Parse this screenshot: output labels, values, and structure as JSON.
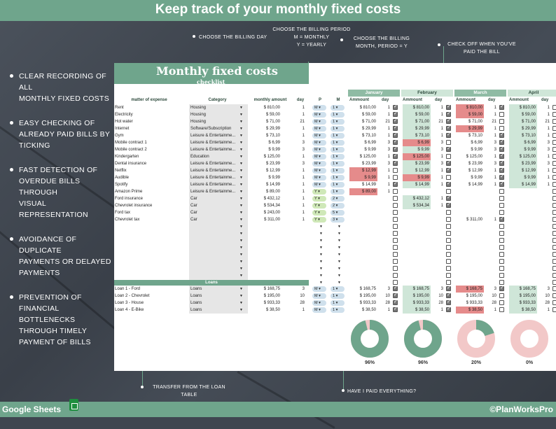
{
  "page_title": "Keep track of your monthly fixed costs",
  "bullets": [
    "CLEAR RECORDING OF ALL\nMONTHLY FIXED COSTS",
    "EASY CHECKING OF\nALREADY PAID BILLS BY\nTICKING",
    "FAST DETECTION OF\nOVERDUE BILLS THROUGH\nVISUAL REPRESENTATION",
    "AVOIDANCE OF DUPLICATE\nPAYMENTS OR DELAYED\nPAYMENTS",
    "PREVENTION OF\nFINANCIAL BOTTLENECKS\nTHROUGH TIMELY\nPAYMENT OF BILLS"
  ],
  "callouts": {
    "billing_day": "CHOOSE THE BILLING DAY",
    "billing_period": "CHOOSE THE BILLING PERIOD\nM = MONTHLY\nY = YEARLY",
    "billing_month": "CHOOSE THE BILLING\nMONTH, PERIOD = Y",
    "check_off": "CHECK OFF WHEN YOU'VE\nPAID THE BILL",
    "transfer": "TRANSFER FROM THE LOAN\nTABLE",
    "paid_everything": "HAVE I PAID EVERYTHING?"
  },
  "footer": {
    "left": "Google Sheets",
    "right": "©PlanWorksPro"
  },
  "sheet": {
    "title": "Monthly fixed costs",
    "subtitle": "checklist",
    "headers": {
      "expense": "matter of expense",
      "category": "Category",
      "amount": "monthly amount",
      "day": "day",
      "p": "P",
      "m": "M"
    },
    "month_sub": {
      "amount": "Ammount",
      "day": "day"
    },
    "months": [
      "January",
      "February",
      "March",
      "April"
    ],
    "loans_label": "Loans",
    "rows": [
      {
        "name": "Rent",
        "cat": "Housing",
        "amt": "$ 810,00",
        "day": "1",
        "p": "M",
        "m": "1",
        "v": [
          "$ 810,00",
          "$ 810,00",
          "$ 810,00",
          "$ 810,00"
        ],
        "d": [
          "1",
          "1",
          "1",
          "1"
        ],
        "c": [
          1,
          1,
          1,
          0
        ],
        "red": [
          0,
          0,
          1,
          0
        ]
      },
      {
        "name": "Electricity",
        "cat": "Housing",
        "amt": "$ 59,00",
        "day": "1",
        "p": "M",
        "m": "1",
        "v": [
          "$ 59,00",
          "$ 59,00",
          "$ 59,00",
          "$ 59,00"
        ],
        "d": [
          "1",
          "1",
          "1",
          "1"
        ],
        "c": [
          1,
          1,
          0,
          0
        ],
        "red": [
          0,
          0,
          1,
          0
        ]
      },
      {
        "name": "Hot water",
        "cat": "Housing",
        "amt": "$ 71,00",
        "day": "21",
        "p": "M",
        "m": "1",
        "v": [
          "$ 71,00",
          "$ 71,00",
          "$ 71,00",
          "$ 71,00"
        ],
        "d": [
          "21",
          "21",
          "21",
          "21"
        ],
        "c": [
          1,
          1,
          0,
          0
        ],
        "red": [
          0,
          0,
          0,
          0
        ]
      },
      {
        "name": "Internet",
        "cat": "Software/Subscription",
        "amt": "$ 29,99",
        "day": "1",
        "p": "M",
        "m": "1",
        "v": [
          "$ 29,99",
          "$ 29,99",
          "$ 29,99",
          "$ 29,99"
        ],
        "d": [
          "1",
          "1",
          "1",
          "1"
        ],
        "c": [
          1,
          1,
          0,
          0
        ],
        "red": [
          0,
          0,
          1,
          0
        ]
      },
      {
        "name": "Gym",
        "cat": "Leisure & Entertainme...",
        "amt": "$ 73,10",
        "day": "1",
        "p": "M",
        "m": "1",
        "v": [
          "$ 73,10",
          "$ 73,10",
          "$ 73,10",
          "$ 73,10"
        ],
        "d": [
          "1",
          "1",
          "1",
          "1"
        ],
        "c": [
          1,
          1,
          1,
          0
        ],
        "red": [
          0,
          0,
          0,
          0
        ]
      },
      {
        "name": "Mobile contract 1",
        "cat": "Leisure & Entertainme...",
        "amt": "$ 6,99",
        "day": "3",
        "p": "M",
        "m": "1",
        "v": [
          "$ 6,99",
          "$ 6,99",
          "$ 6,99",
          "$ 6,99"
        ],
        "d": [
          "3",
          "3",
          "3",
          "3"
        ],
        "c": [
          1,
          0,
          1,
          0
        ],
        "red": [
          0,
          1,
          0,
          0
        ]
      },
      {
        "name": "Mobile contract 2",
        "cat": "Leisure & Entertainme...",
        "amt": "$ 9,99",
        "day": "3",
        "p": "M",
        "m": "1",
        "v": [
          "$ 9,99",
          "$ 9,99",
          "$ 9,99",
          "$ 9,99"
        ],
        "d": [
          "3",
          "3",
          "3",
          "3"
        ],
        "c": [
          1,
          1,
          1,
          0
        ],
        "red": [
          0,
          0,
          0,
          0
        ]
      },
      {
        "name": "Kindergarten",
        "cat": "Education",
        "amt": "$ 125,00",
        "day": "1",
        "p": "M",
        "m": "1",
        "v": [
          "$ 125,00",
          "$ 125,00",
          "$ 125,00",
          "$ 125,00"
        ],
        "d": [
          "1",
          "1",
          "1",
          "1"
        ],
        "c": [
          1,
          0,
          1,
          0
        ],
        "red": [
          0,
          1,
          0,
          0
        ]
      },
      {
        "name": "Dental insurance",
        "cat": "Leisure & Entertainme...",
        "amt": "$ 23,99",
        "day": "3",
        "p": "M",
        "m": "1",
        "v": [
          "$ 23,99",
          "$ 23,99",
          "$ 23,99",
          "$ 23,99"
        ],
        "d": [
          "3",
          "3",
          "3",
          "3"
        ],
        "c": [
          1,
          1,
          1,
          0
        ],
        "red": [
          0,
          0,
          0,
          0
        ]
      },
      {
        "name": "Netflix",
        "cat": "Leisure & Entertainme...",
        "amt": "$ 12,99",
        "day": "1",
        "p": "M",
        "m": "1",
        "v": [
          "$ 12,99",
          "$ 12,99",
          "$ 12,99",
          "$ 12,99"
        ],
        "d": [
          "1",
          "1",
          "1",
          "1"
        ],
        "c": [
          0,
          1,
          1,
          0
        ],
        "red": [
          1,
          0,
          0,
          0
        ]
      },
      {
        "name": "Audible",
        "cat": "Leisure & Entertainme...",
        "amt": "$ 9,99",
        "day": "1",
        "p": "M",
        "m": "1",
        "v": [
          "$ 9,99",
          "$ 9,99",
          "$ 9,99",
          "$ 9,99"
        ],
        "d": [
          "1",
          "1",
          "1",
          "1"
        ],
        "c": [
          0,
          0,
          1,
          0
        ],
        "red": [
          1,
          1,
          0,
          0
        ]
      },
      {
        "name": "Spotify",
        "cat": "Leisure & Entertainme...",
        "amt": "$ 14,99",
        "day": "1",
        "p": "M",
        "m": "1",
        "v": [
          "$ 14,99",
          "$ 14,99",
          "$ 14,99",
          "$ 14,99"
        ],
        "d": [
          "1",
          "1",
          "1",
          "1"
        ],
        "c": [
          1,
          1,
          1,
          0
        ],
        "red": [
          0,
          0,
          0,
          0
        ]
      },
      {
        "name": "Amazon Prime",
        "cat": "Leisure & Entertainme...",
        "amt": "$ 89,00",
        "day": "1",
        "p": "Y",
        "m": "1",
        "v": [
          "$ 89,00",
          "",
          "",
          ""
        ],
        "d": [
          "1",
          "",
          "",
          ""
        ],
        "c": [
          0,
          0,
          0,
          0
        ],
        "red": [
          1,
          0,
          0,
          0
        ]
      },
      {
        "name": "Ford insurance",
        "cat": "Car",
        "amt": "$ 432,12",
        "day": "1",
        "p": "Y",
        "m": "2",
        "v": [
          "",
          "$ 432,12",
          "",
          ""
        ],
        "d": [
          "",
          "1",
          "",
          ""
        ],
        "c": [
          0,
          1,
          0,
          0
        ],
        "red": [
          0,
          0,
          0,
          0
        ]
      },
      {
        "name": "Chevrolet insurance",
        "cat": "Car",
        "amt": "$ 534,34",
        "day": "1",
        "p": "Y",
        "m": "2",
        "v": [
          "",
          "$ 534,34",
          "",
          ""
        ],
        "d": [
          "",
          "1",
          "",
          ""
        ],
        "c": [
          0,
          1,
          0,
          0
        ],
        "red": [
          0,
          0,
          0,
          0
        ]
      },
      {
        "name": "Ford tax",
        "cat": "Car",
        "amt": "$ 243,00",
        "day": "1",
        "p": "Y",
        "m": "5",
        "v": [
          "",
          "",
          "",
          ""
        ],
        "d": [
          "",
          "",
          "",
          ""
        ],
        "c": [
          0,
          0,
          0,
          0
        ],
        "red": [
          0,
          0,
          0,
          0
        ]
      },
      {
        "name": "Chevrolet tax",
        "cat": "Car",
        "amt": "$ 311,00",
        "day": "1",
        "p": "Y",
        "m": "3",
        "v": [
          "",
          "",
          "$ 311,00",
          ""
        ],
        "d": [
          "",
          "",
          "1",
          ""
        ],
        "c": [
          0,
          0,
          1,
          0
        ],
        "red": [
          0,
          0,
          0,
          0
        ]
      }
    ],
    "loans": [
      {
        "name": "Loan 1 - Ford",
        "cat": "Loans",
        "amt": "$ 168,75",
        "day": "3",
        "p": "M",
        "m": "1",
        "v": [
          "$ 168,75",
          "$ 168,75",
          "$ 168,75",
          "$ 168,75"
        ],
        "d": [
          "3",
          "3",
          "3",
          "3"
        ],
        "c": [
          1,
          1,
          1,
          0
        ],
        "red": [
          0,
          0,
          1,
          0
        ]
      },
      {
        "name": "Loan 2 - Chevrolet",
        "cat": "Loans",
        "amt": "$ 195,00",
        "day": "10",
        "p": "M",
        "m": "1",
        "v": [
          "$ 195,00",
          "$ 195,00",
          "$ 195,00",
          "$ 195,00"
        ],
        "d": [
          "10",
          "10",
          "10",
          "10"
        ],
        "c": [
          1,
          1,
          0,
          0
        ],
        "red": [
          0,
          0,
          0,
          0
        ]
      },
      {
        "name": "Loan 3 - House",
        "cat": "Loans",
        "amt": "$ 933,33",
        "day": "28",
        "p": "M",
        "m": "1",
        "v": [
          "$ 933,33",
          "$ 933,33",
          "$ 933,33",
          "$ 933,33"
        ],
        "d": [
          "28",
          "28",
          "28",
          "28"
        ],
        "c": [
          1,
          1,
          0,
          0
        ],
        "red": [
          0,
          0,
          0,
          0
        ]
      },
      {
        "name": "Loan 4 - E-Bike",
        "cat": "Loans",
        "amt": "$ 38,50",
        "day": "1",
        "p": "M",
        "m": "1",
        "v": [
          "$ 38,50",
          "$ 38,50",
          "$ 38,50",
          "$ 38,50"
        ],
        "d": [
          "1",
          "1",
          "1",
          "1"
        ],
        "c": [
          1,
          1,
          0,
          0
        ],
        "red": [
          0,
          0,
          1,
          0
        ]
      }
    ],
    "donuts": [
      {
        "label": "96%",
        "fraction": 0.96
      },
      {
        "label": "96%",
        "fraction": 0.96
      },
      {
        "label": "20%",
        "fraction": 0.2
      },
      {
        "label": "0%",
        "fraction": 0.0
      }
    ]
  },
  "colors": {
    "accent": "#6fa58c",
    "light_green": "#cfe6d8",
    "red": "#e58b8b",
    "pink": "#f2c8c8"
  }
}
